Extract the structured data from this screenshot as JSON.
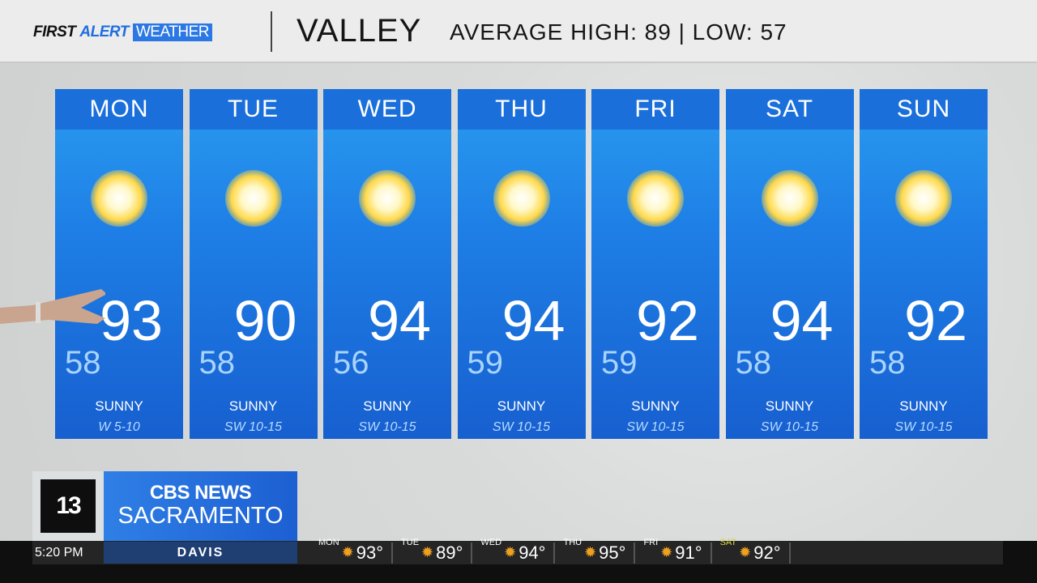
{
  "header": {
    "brand": [
      "FIRST",
      "ALERT",
      "WEATHER"
    ],
    "region": "VALLEY",
    "average": "AVERAGE  HIGH: 89 | LOW: 57"
  },
  "forecast": [
    {
      "day": "MON",
      "high": "93",
      "low": "58",
      "condition": "SUNNY",
      "wind": "W 5-10",
      "icon": "sun-icon"
    },
    {
      "day": "TUE",
      "high": "90",
      "low": "58",
      "condition": "SUNNY",
      "wind": "SW 10-15",
      "icon": "sun-icon"
    },
    {
      "day": "WED",
      "high": "94",
      "low": "56",
      "condition": "SUNNY",
      "wind": "SW 10-15",
      "icon": "sun-icon"
    },
    {
      "day": "THU",
      "high": "94",
      "low": "59",
      "condition": "SUNNY",
      "wind": "SW 10-15",
      "icon": "sun-icon"
    },
    {
      "day": "FRI",
      "high": "92",
      "low": "59",
      "condition": "SUNNY",
      "wind": "SW 10-15",
      "icon": "sun-icon"
    },
    {
      "day": "SAT",
      "high": "94",
      "low": "58",
      "condition": "SUNNY",
      "wind": "SW 10-15",
      "icon": "sun-icon"
    },
    {
      "day": "SUN",
      "high": "92",
      "low": "58",
      "condition": "SUNNY",
      "wind": "SW 10-15",
      "icon": "sun-icon"
    }
  ],
  "station": {
    "logo": "13",
    "network": "CBS NEWS",
    "market": "SACRAMENTO"
  },
  "ticker": {
    "time": "5:20 PM",
    "location": "DAVIS",
    "items": [
      {
        "day": "MON",
        "temp": "93°"
      },
      {
        "day": "TUE",
        "temp": "89°"
      },
      {
        "day": "WED",
        "temp": "94°"
      },
      {
        "day": "THU",
        "temp": "95°"
      },
      {
        "day": "FRI",
        "temp": "91°"
      },
      {
        "day": "SAT",
        "temp": "92°"
      }
    ]
  },
  "colors": {
    "card": "#1e7fe6",
    "header_blue": "#2b78e4",
    "ticker_sun": "#f0a020"
  }
}
